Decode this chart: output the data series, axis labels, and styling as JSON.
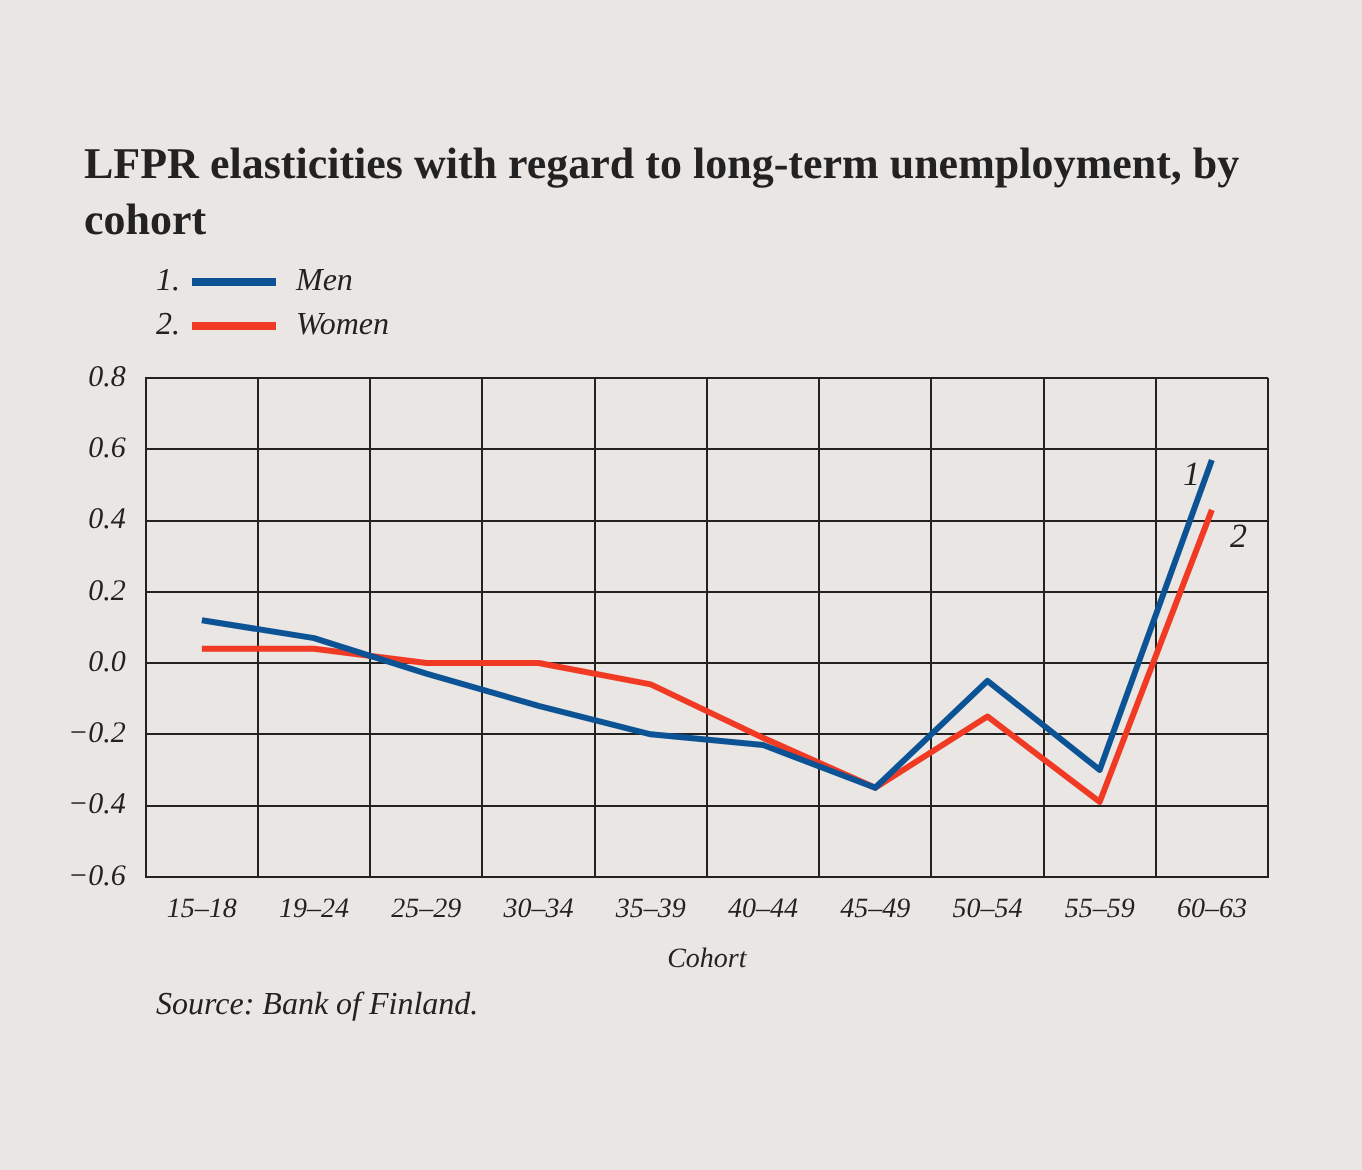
{
  "chart_data": {
    "type": "line",
    "title": "LFPR elasticities with regard to long-term unemployment, by cohort",
    "xlabel": "Cohort",
    "categories": [
      "15–18",
      "19–24",
      "25–29",
      "30–34",
      "35–39",
      "40–44",
      "45–49",
      "50–54",
      "55–59",
      "60–63"
    ],
    "series": [
      {
        "name": "Men",
        "color": "#0b5394",
        "values": [
          0.12,
          0.07,
          -0.03,
          -0.12,
          -0.2,
          -0.23,
          -0.35,
          -0.05,
          -0.3,
          0.57
        ]
      },
      {
        "name": "Women",
        "color": "#f03a24",
        "values": [
          0.04,
          0.04,
          0.0,
          0.0,
          -0.06,
          -0.21,
          -0.35,
          -0.15,
          -0.39,
          0.43
        ]
      }
    ],
    "ylim": [
      -0.6,
      0.8
    ],
    "yticks": [
      {
        "value": -0.6,
        "label": "−0.6"
      },
      {
        "value": -0.4,
        "label": "−0.4"
      },
      {
        "value": -0.2,
        "label": "−0.2"
      },
      {
        "value": 0,
        "label": "0.0"
      },
      {
        "value": 0.2,
        "label": "0.2"
      },
      {
        "value": 0.4,
        "label": "0.4"
      },
      {
        "value": 0.6,
        "label": "0.6"
      },
      {
        "value": 0.8,
        "label": "0.8"
      }
    ],
    "grid": true,
    "legend": "top left",
    "marker": "none",
    "line_style": "solid",
    "annotations": [
      {
        "text": "1",
        "x": "60–63",
        "y": 0.57
      },
      {
        "text": "2",
        "x": "60–63",
        "y": 0.43
      },
      "1.",
      "2.",
      "Source: Bank of Finland."
    ]
  }
}
